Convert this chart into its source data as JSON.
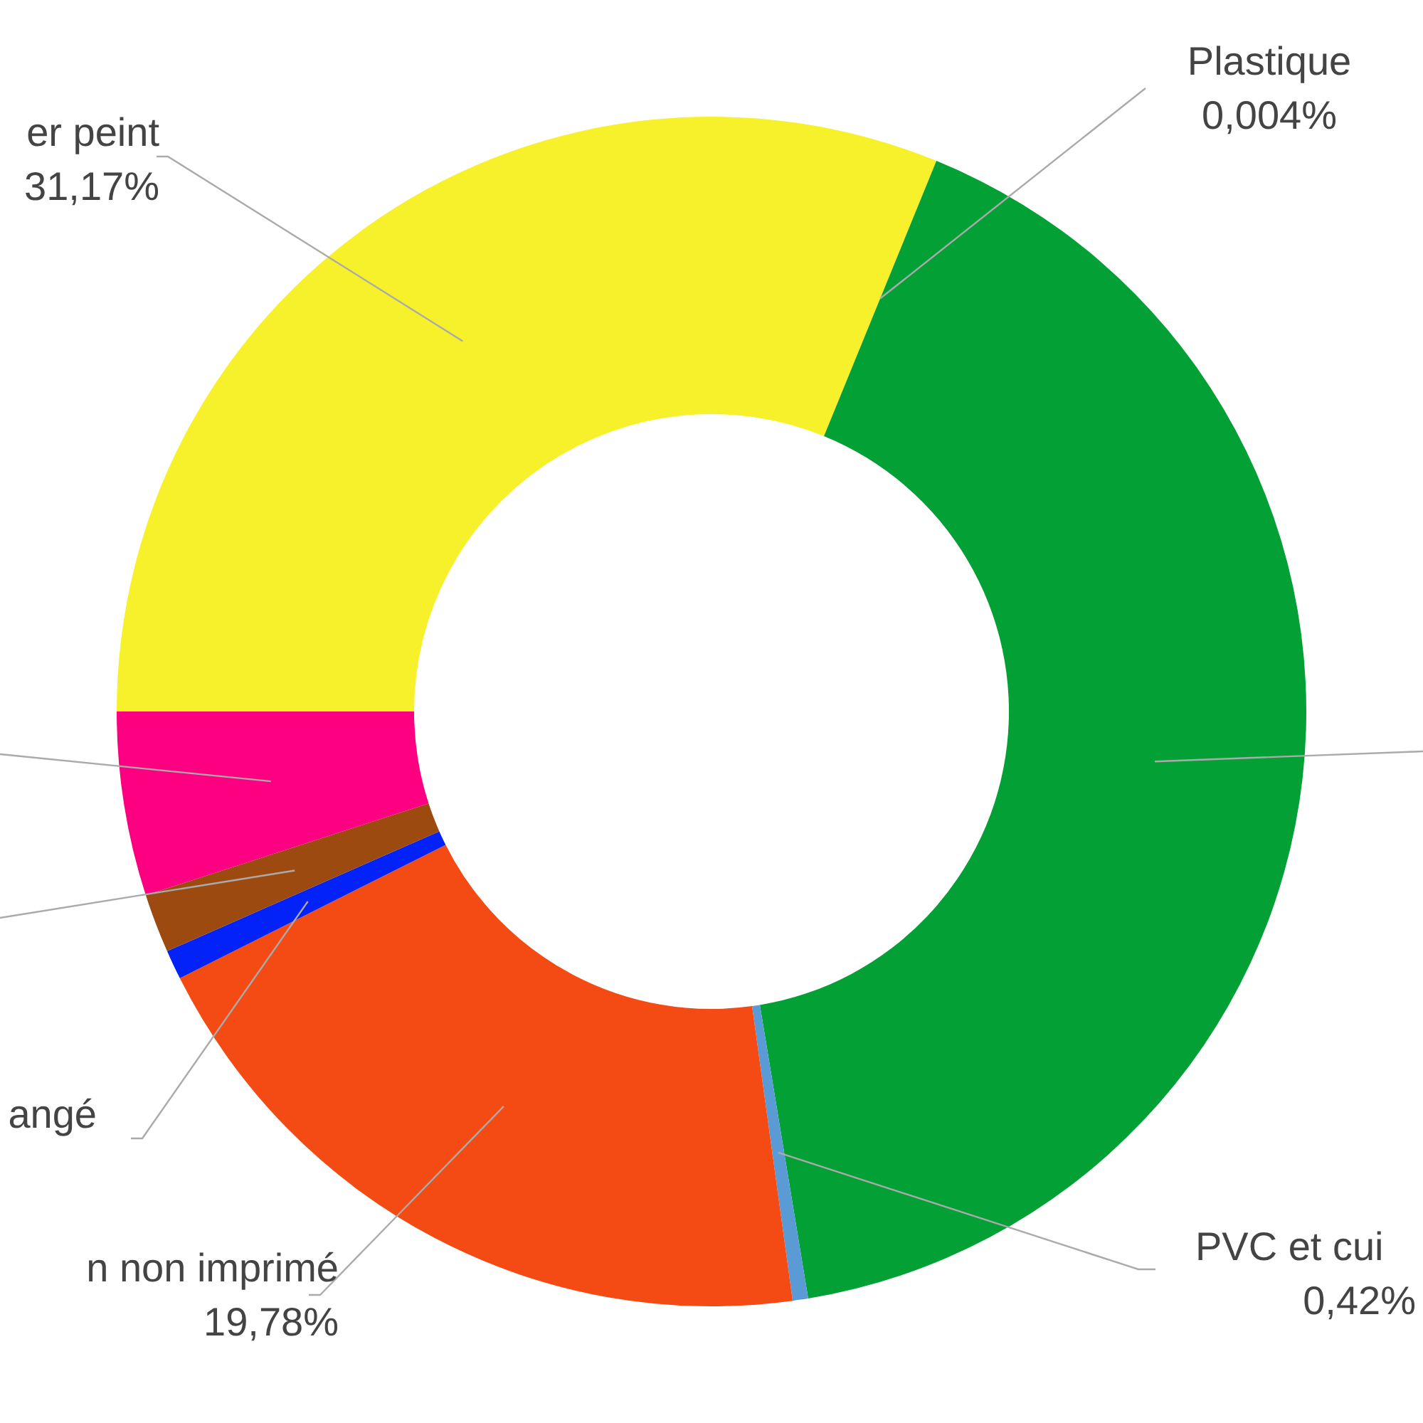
{
  "chart_data": {
    "type": "donut",
    "categories": [
      "er peint",
      "Plastique",
      null,
      "PVC et cui",
      "n non imprimé",
      "angé",
      null,
      null
    ],
    "values": [
      31.17,
      0.004,
      41.23,
      0.42,
      19.78,
      0.8,
      1.6,
      5
    ],
    "colors": [
      "#f7f12c",
      "#7fbf3f",
      "#02a035",
      "#5b9bd5",
      "#f44a14",
      "#0322f7",
      "#9c4a10",
      "#fd0081"
    ],
    "value_labels": [
      "31,17%",
      "0,004%",
      null,
      "0,42%",
      "19,78%",
      null,
      null,
      null
    ]
  }
}
